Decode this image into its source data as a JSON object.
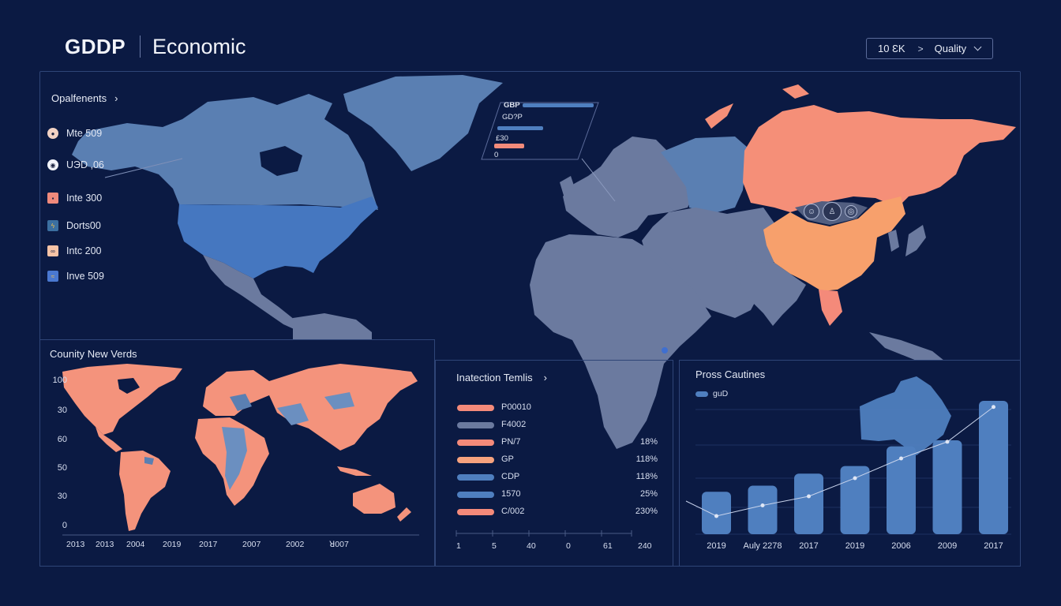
{
  "header": {
    "brand": "GDDP",
    "subtitle": "Economic",
    "selector": {
      "value": "10 ƐK",
      "chevron": ">",
      "option": "Quality"
    }
  },
  "layers": {
    "title": "Opalfenents",
    "items": [
      {
        "label": "Mte 509",
        "icon": "circle-badge-icon",
        "color": "#f2d2c4"
      },
      {
        "label": "UЭD ,06",
        "icon": "ring-badge-icon",
        "color": "#f2f4fa"
      },
      {
        "label": "Inte 300",
        "icon": "square-badge-icon",
        "color": "#f08a7c"
      },
      {
        "label": "Dorts00",
        "icon": "bolt-badge-icon",
        "color": "#3b6fa0"
      },
      {
        "label": "Intc 200",
        "icon": "bike-badge-icon",
        "color": "#f6c3a6"
      },
      {
        "label": "Inve 509",
        "icon": "chart-badge-icon",
        "color": "#4a78d0"
      }
    ]
  },
  "mini_legend": {
    "rows": [
      {
        "label": "GBP",
        "color": "#4f7fbf"
      },
      {
        "label": "GD?P",
        "color": ""
      },
      {
        "label": "",
        "color": "#4f7fbf"
      },
      {
        "label": "£30",
        "color": "#f28b7b"
      },
      {
        "label": "0",
        "color": ""
      }
    ]
  },
  "map_icons": [
    "smile-icon",
    "person-icon",
    "globe-icon"
  ],
  "colors": {
    "background": "#0b1a43",
    "panel_border": "#2f4577",
    "land_gray": "#6b7a9f",
    "land_blue": "#5a7fb2",
    "usa_blue": "#4577c0",
    "russia_salmon": "#f58f78",
    "china_orange": "#f7a06c",
    "bar_blue": "#4f7fbf"
  },
  "panel_country": {
    "title": "Counity New Verds",
    "y_ticks": [
      "100",
      "30",
      "60",
      "50",
      "30",
      "0"
    ],
    "x_ticks": [
      "2013",
      "2013",
      "2004",
      "2019",
      "2017",
      "2007",
      "2002",
      "ꓤ007"
    ]
  },
  "panel_trends": {
    "title": "Inatection Temlis",
    "rows": [
      {
        "label": "P00010",
        "value": "",
        "color": "#f48a7a"
      },
      {
        "label": "F4002",
        "value": "",
        "color": "#6b7a9f"
      },
      {
        "label": "PN/7",
        "value": "18%",
        "color": "#f48a7a"
      },
      {
        "label": "GP",
        "value": "118%",
        "color": "#f6a27e"
      },
      {
        "label": "CDP",
        "value": "118%",
        "color": "#4f7fbf"
      },
      {
        "label": "1570",
        "value": "25%",
        "color": "#4f7fbf"
      },
      {
        "label": "C/002",
        "value": "230%",
        "color": "#f48a7a"
      }
    ],
    "axis_ticks": [
      "1",
      "5",
      "40",
      "0",
      "61",
      "240"
    ]
  },
  "chart_data": {
    "type": "bar",
    "title": "Pross Cautines",
    "legend": [
      "guD"
    ],
    "categories": [
      "2019",
      "Auly 2278",
      "2017",
      "2019",
      "2006",
      "2009",
      "2017"
    ],
    "series": [
      {
        "name": "guD (bars)",
        "type": "bar",
        "values": [
          28,
          32,
          40,
          45,
          58,
          62,
          88
        ]
      },
      {
        "name": "trend line",
        "type": "line",
        "values": [
          12,
          19,
          25,
          37,
          50,
          61,
          84
        ]
      }
    ],
    "xlabel": "",
    "ylabel": "",
    "ylim": [
      0,
      100
    ],
    "grid": true
  }
}
